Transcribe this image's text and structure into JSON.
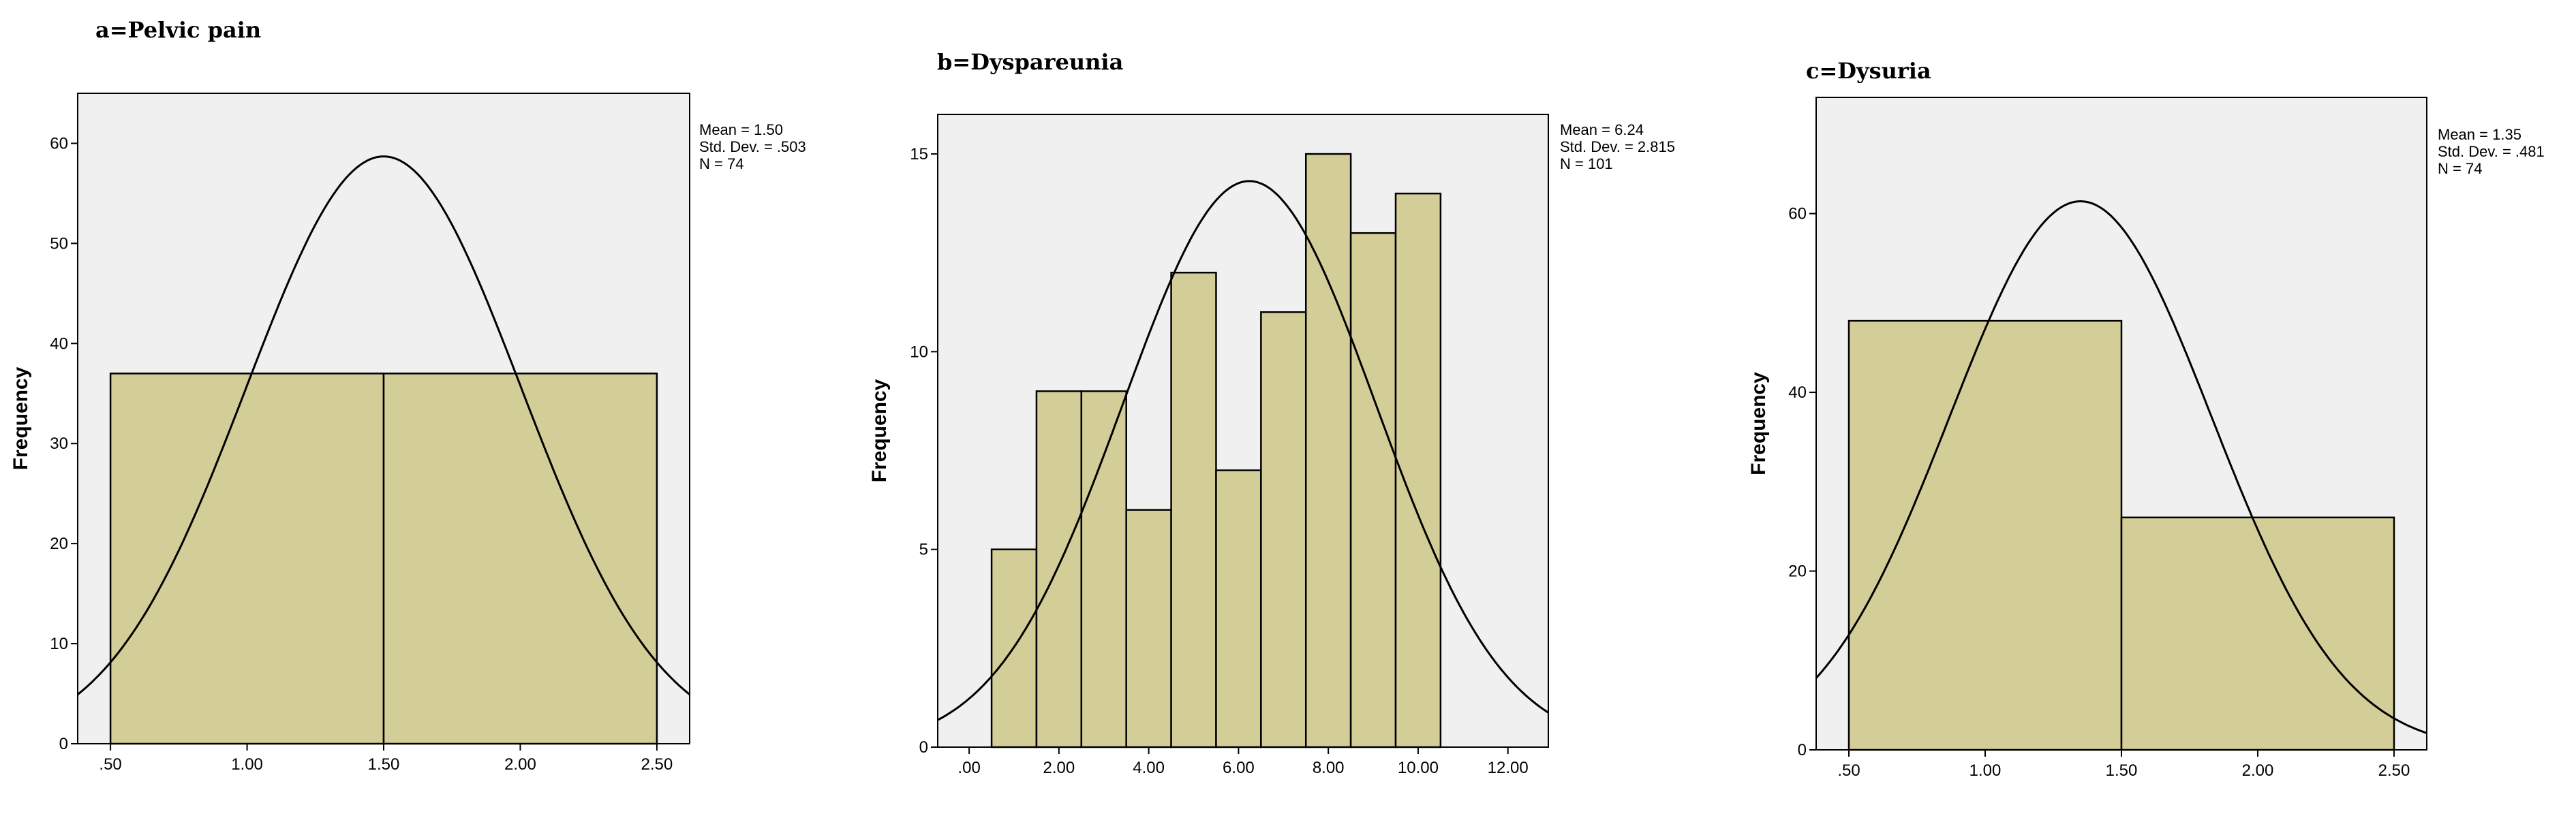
{
  "chart_data": [
    {
      "type": "bar",
      "title": "a=Pelvic pain",
      "xlabel": "",
      "ylabel": "Frequency",
      "xlim": [
        0.38,
        2.62
      ],
      "ylim": [
        0,
        65
      ],
      "xticks": [
        0.5,
        1.0,
        1.5,
        2.0,
        2.5
      ],
      "xtick_labels": [
        ".50",
        "1.00",
        "1.50",
        "2.00",
        "2.50"
      ],
      "yticks": [
        0,
        10,
        20,
        30,
        40,
        50,
        60
      ],
      "ytick_labels": [
        "0",
        "10",
        "20",
        "30",
        "40",
        "50",
        "60"
      ],
      "bins": [
        {
          "start": 0.5,
          "end": 1.5,
          "value": 37
        },
        {
          "start": 1.5,
          "end": 2.5,
          "value": 37
        }
      ],
      "normal_curve": {
        "mean": 1.5,
        "sd": 0.503,
        "n": 74,
        "bin_width": 1.0
      },
      "stats": [
        "Mean = 1.50",
        "Std. Dev. = .503",
        "N = 74"
      ]
    },
    {
      "type": "bar",
      "title": "b=Dyspareunia",
      "xlabel": "",
      "ylabel": "Frequency",
      "xlim": [
        -0.7,
        12.9
      ],
      "ylim": [
        0,
        16
      ],
      "xticks": [
        0,
        2,
        4,
        6,
        8,
        10,
        12
      ],
      "xtick_labels": [
        ".00",
        "2.00",
        "4.00",
        "6.00",
        "8.00",
        "10.00",
        "12.00"
      ],
      "yticks": [
        0,
        5,
        10,
        15
      ],
      "ytick_labels": [
        "0",
        "5",
        "10",
        "15"
      ],
      "bins": [
        {
          "start": 0.5,
          "end": 1.5,
          "value": 5
        },
        {
          "start": 1.5,
          "end": 2.5,
          "value": 9
        },
        {
          "start": 2.5,
          "end": 3.5,
          "value": 9
        },
        {
          "start": 3.5,
          "end": 4.5,
          "value": 6
        },
        {
          "start": 4.5,
          "end": 5.5,
          "value": 12
        },
        {
          "start": 5.5,
          "end": 6.5,
          "value": 7
        },
        {
          "start": 6.5,
          "end": 7.5,
          "value": 11
        },
        {
          "start": 7.5,
          "end": 8.5,
          "value": 15
        },
        {
          "start": 8.5,
          "end": 9.5,
          "value": 13
        },
        {
          "start": 9.5,
          "end": 10.5,
          "value": 14
        }
      ],
      "normal_curve": {
        "mean": 6.24,
        "sd": 2.815,
        "n": 101,
        "bin_width": 1.0
      },
      "stats": [
        "Mean = 6.24",
        "Std. Dev. = 2.815",
        "N = 101"
      ]
    },
    {
      "type": "bar",
      "title": "c=Dysuria",
      "xlabel": "",
      "ylabel": "Frequency",
      "xlim": [
        0.38,
        2.62
      ],
      "ylim": [
        0,
        73
      ],
      "xticks": [
        0.5,
        1.0,
        1.5,
        2.0,
        2.5
      ],
      "xtick_labels": [
        ".50",
        "1.00",
        "1.50",
        "2.00",
        "2.50"
      ],
      "yticks": [
        0,
        20,
        40,
        60
      ],
      "ytick_labels": [
        "0",
        "20",
        "40",
        "60"
      ],
      "bins": [
        {
          "start": 0.5,
          "end": 1.5,
          "value": 48
        },
        {
          "start": 1.5,
          "end": 2.5,
          "value": 26
        }
      ],
      "normal_curve": {
        "mean": 1.35,
        "sd": 0.481,
        "n": 74,
        "bin_width": 1.0
      },
      "stats": [
        "Mean = 1.35",
        "Std. Dev. = .481",
        "N = 74"
      ]
    }
  ]
}
